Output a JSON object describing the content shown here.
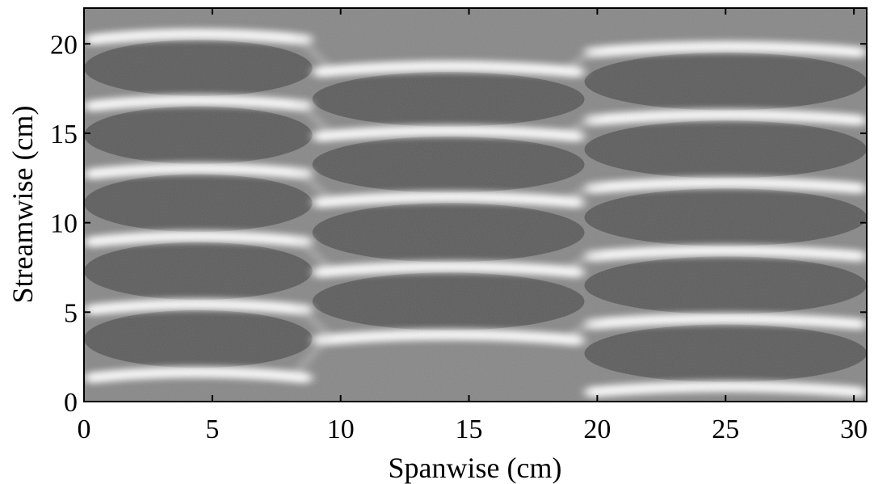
{
  "chart_data": {
    "type": "heatmap",
    "title": "",
    "xlabel": "Spanwise (cm)",
    "ylabel": "Streamwise (cm)",
    "xlim": [
      0,
      30.5
    ],
    "ylim": [
      0,
      22
    ],
    "xticks": [
      0,
      5,
      10,
      15,
      20,
      25,
      30
    ],
    "yticks": [
      0,
      5,
      10,
      15,
      20
    ],
    "colormap": "grayscale",
    "grid": false,
    "colors": {
      "low": "#3a3a3a",
      "mid": "#888888",
      "high": "#ffffff"
    },
    "zones": [
      {
        "x_range": [
          0,
          8.9
        ],
        "ridges_y": [
          1.6,
          5.4,
          9.2,
          13.0,
          16.8,
          20.5
        ]
      },
      {
        "x_range": [
          8.9,
          19.5
        ],
        "ridges_y": [
          3.7,
          7.5,
          11.4,
          15.1,
          18.7
        ]
      },
      {
        "x_range": [
          19.5,
          30.5
        ],
        "ridges_y": [
          0.8,
          4.6,
          8.4,
          12.2,
          16.0,
          19.8
        ]
      }
    ]
  }
}
